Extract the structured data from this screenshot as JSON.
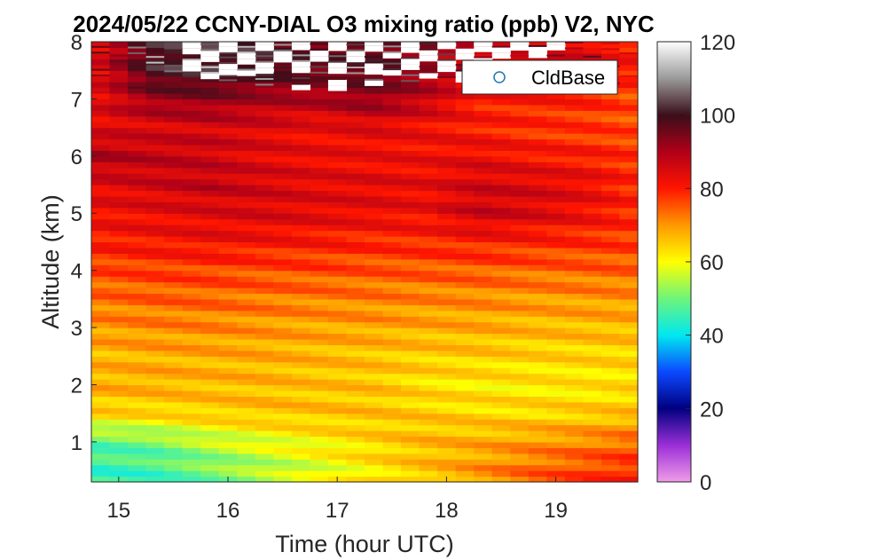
{
  "chart_data": {
    "type": "heatmap",
    "title": "2024/05/22 CCNY-DIAL O3 mixing ratio (ppb) V2, NYC",
    "xlabel": "Time (hour UTC)",
    "ylabel": "Altitude (km)",
    "xlim": [
      14.75,
      19.75
    ],
    "ylim": [
      0.3,
      8.0
    ],
    "xticks": [
      15,
      16,
      17,
      18,
      19
    ],
    "yticks": [
      1,
      2,
      3,
      4,
      5,
      6,
      7,
      8
    ],
    "colorbar": {
      "range": [
        0,
        120
      ],
      "ticks": [
        0,
        20,
        40,
        60,
        80,
        100,
        120
      ],
      "colormap": "hot-jet-gray (violet 0, blue 20, cyan 40, yellow 60, red 80, dark maroon 100, white 120)"
    },
    "legend": {
      "entries": [
        "CldBase"
      ],
      "location": "top-right",
      "marker": "open circle",
      "marker_color": "#1f77b4"
    },
    "altitude_levels_km": [
      0.5,
      1.0,
      1.5,
      2.0,
      2.5,
      3.0,
      3.5,
      4.0,
      4.5,
      5.0,
      5.5,
      6.0,
      6.5,
      7.0,
      7.5
    ],
    "profiles": [
      {
        "time": 14.8,
        "o3_ppb": [
          45,
          48,
          64,
          68,
          67,
          70,
          73,
          76,
          80,
          82,
          84,
          90,
          84,
          84,
          84
        ]
      },
      {
        "time": 15.3,
        "o3_ppb": [
          46,
          50,
          64,
          68,
          68,
          71,
          74,
          77,
          81,
          83,
          86,
          88,
          85,
          92,
          100
        ]
      },
      {
        "time": 15.8,
        "o3_ppb": [
          50,
          55,
          65,
          67,
          68,
          71,
          74,
          77,
          82,
          84,
          88,
          87,
          86,
          93,
          102
        ]
      },
      {
        "time": 16.3,
        "o3_ppb": [
          54,
          58,
          66,
          67,
          68,
          70,
          73,
          76,
          81,
          85,
          86,
          84,
          85,
          90,
          100
        ]
      },
      {
        "time": 16.8,
        "o3_ppb": [
          58,
          61,
          66,
          66,
          67,
          69,
          72,
          76,
          80,
          84,
          84,
          83,
          82,
          90,
          96
        ]
      },
      {
        "time": 17.3,
        "o3_ppb": [
          62,
          64,
          66,
          66,
          66,
          69,
          72,
          75,
          79,
          83,
          84,
          82,
          84,
          93,
          98
        ]
      },
      {
        "time": 17.8,
        "o3_ppb": [
          66,
          67,
          65,
          63,
          65,
          68,
          71,
          75,
          79,
          82,
          83,
          82,
          82,
          88,
          92
        ]
      },
      {
        "time": 18.3,
        "o3_ppb": [
          70,
          68,
          64,
          62,
          65,
          68,
          71,
          75,
          80,
          87,
          86,
          83,
          80,
          80,
          86
        ]
      },
      {
        "time": 18.8,
        "o3_ppb": [
          74,
          70,
          64,
          62,
          64,
          67,
          70,
          74,
          79,
          85,
          85,
          81,
          78,
          80,
          85
        ]
      },
      {
        "time": 19.3,
        "o3_ppb": [
          77,
          72,
          65,
          62,
          64,
          67,
          70,
          74,
          78,
          82,
          83,
          80,
          77,
          79,
          84
        ]
      },
      {
        "time": 19.7,
        "o3_ppb": [
          79,
          74,
          66,
          63,
          64,
          67,
          70,
          74,
          77,
          79,
          79,
          78,
          76,
          76,
          80
        ]
      }
    ]
  }
}
